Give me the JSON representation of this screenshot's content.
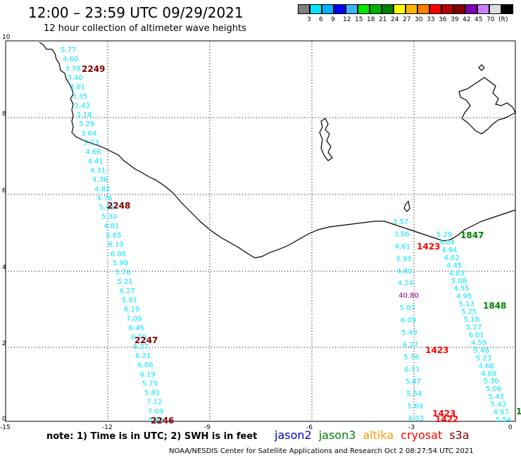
{
  "header": {
    "title": "12:00 – 23:59 UTC 09/29/2021",
    "subtitle": "12 hour collection of altimeter wave heights"
  },
  "colorbar": {
    "colors": [
      "#7f7f7f",
      "#00e5ff",
      "#00b2ff",
      "#0000ff",
      "#3bb3ff",
      "#00e600",
      "#00b300",
      "#008000",
      "#ffff00",
      "#ffb300",
      "#ff7f00",
      "#ff0000",
      "#b30000",
      "#7f0000",
      "#8000b3",
      "#cc80ff",
      "#dddddd",
      "#000000"
    ],
    "labels": [
      "3",
      "6",
      "9",
      "12",
      "15",
      "18",
      "21",
      "24",
      "27",
      "30",
      "33",
      "36",
      "39",
      "42",
      "45",
      "70",
      "(ft)"
    ]
  },
  "axes": {
    "x_ticks": [
      "-15",
      "-12",
      "-9",
      "-6",
      "-3",
      "0"
    ],
    "y_ticks": [
      "0",
      "2",
      "4",
      "6",
      "8",
      "10"
    ],
    "x_range": [
      -15,
      0
    ],
    "y_range": [
      0,
      10
    ]
  },
  "tracks": {
    "west": {
      "color": "#00e5ff",
      "labels": [
        "5.77",
        "4.60",
        "3.78",
        "3.40",
        "3.01",
        "3.35",
        "3.43",
        "3.18",
        "3.29",
        "3.64",
        "5.73",
        "4.66",
        "4.41",
        "4.31",
        "4.36",
        "4.82",
        "4.76",
        "5.65",
        "5.30",
        "4.81",
        "5.65",
        "6.19",
        "6.08",
        "5.98",
        "5.78",
        "5.21",
        "6.27",
        "5.91",
        "6.19",
        "7.09",
        "6.45",
        "6.70",
        "6.27",
        "6.21",
        "6.06",
        "6.19",
        "5.75",
        "5.81",
        "7.12",
        "7.09",
        "7.80"
      ]
    },
    "center": {
      "color": "#00e5ff",
      "labels": [
        "3.57",
        "3.56",
        "4.61",
        "3.93",
        "4.80",
        "4.24",
        "40.80",
        "5.07",
        "6.09",
        "5.49",
        "6.27",
        "5.76",
        "6.11",
        "5.87",
        "5.54",
        "5.69",
        "6.03"
      ]
    },
    "east": {
      "color": "#00e5ff",
      "labels": [
        "5.29",
        "4.04",
        "4.94",
        "4.62",
        "4.45",
        "4.83",
        "5.08",
        "4.55",
        "4.95",
        "5.13",
        "5.25",
        "5.18",
        "5.27",
        "6.01",
        "4.59",
        "5.48",
        "5.23",
        "4.68",
        "4.68",
        "5.30",
        "5.06",
        "5.43",
        "5.43",
        "4.97",
        "5.54"
      ]
    }
  },
  "time_labels": [
    "2249",
    "2248",
    "2247",
    "2246",
    "1423",
    "1423",
    "1423",
    "1422",
    "1847",
    "1848",
    "1"
  ],
  "footer": {
    "note": "note: 1) Time is in UTC; 2) SWH is in feet",
    "satellites": [
      {
        "name": "jason2",
        "color": "#0000d0"
      },
      {
        "name": "jason3",
        "color": "#008000"
      },
      {
        "name": "altika",
        "color": "#ff9900"
      },
      {
        "name": "cryosat",
        "color": "#ff0000"
      },
      {
        "name": "s3a",
        "color": "#7f0000"
      }
    ],
    "credit": "NOAA/NESDIS Center for Satellite Applications and Research   Oct  2 08:27:54 UTC 2021"
  }
}
